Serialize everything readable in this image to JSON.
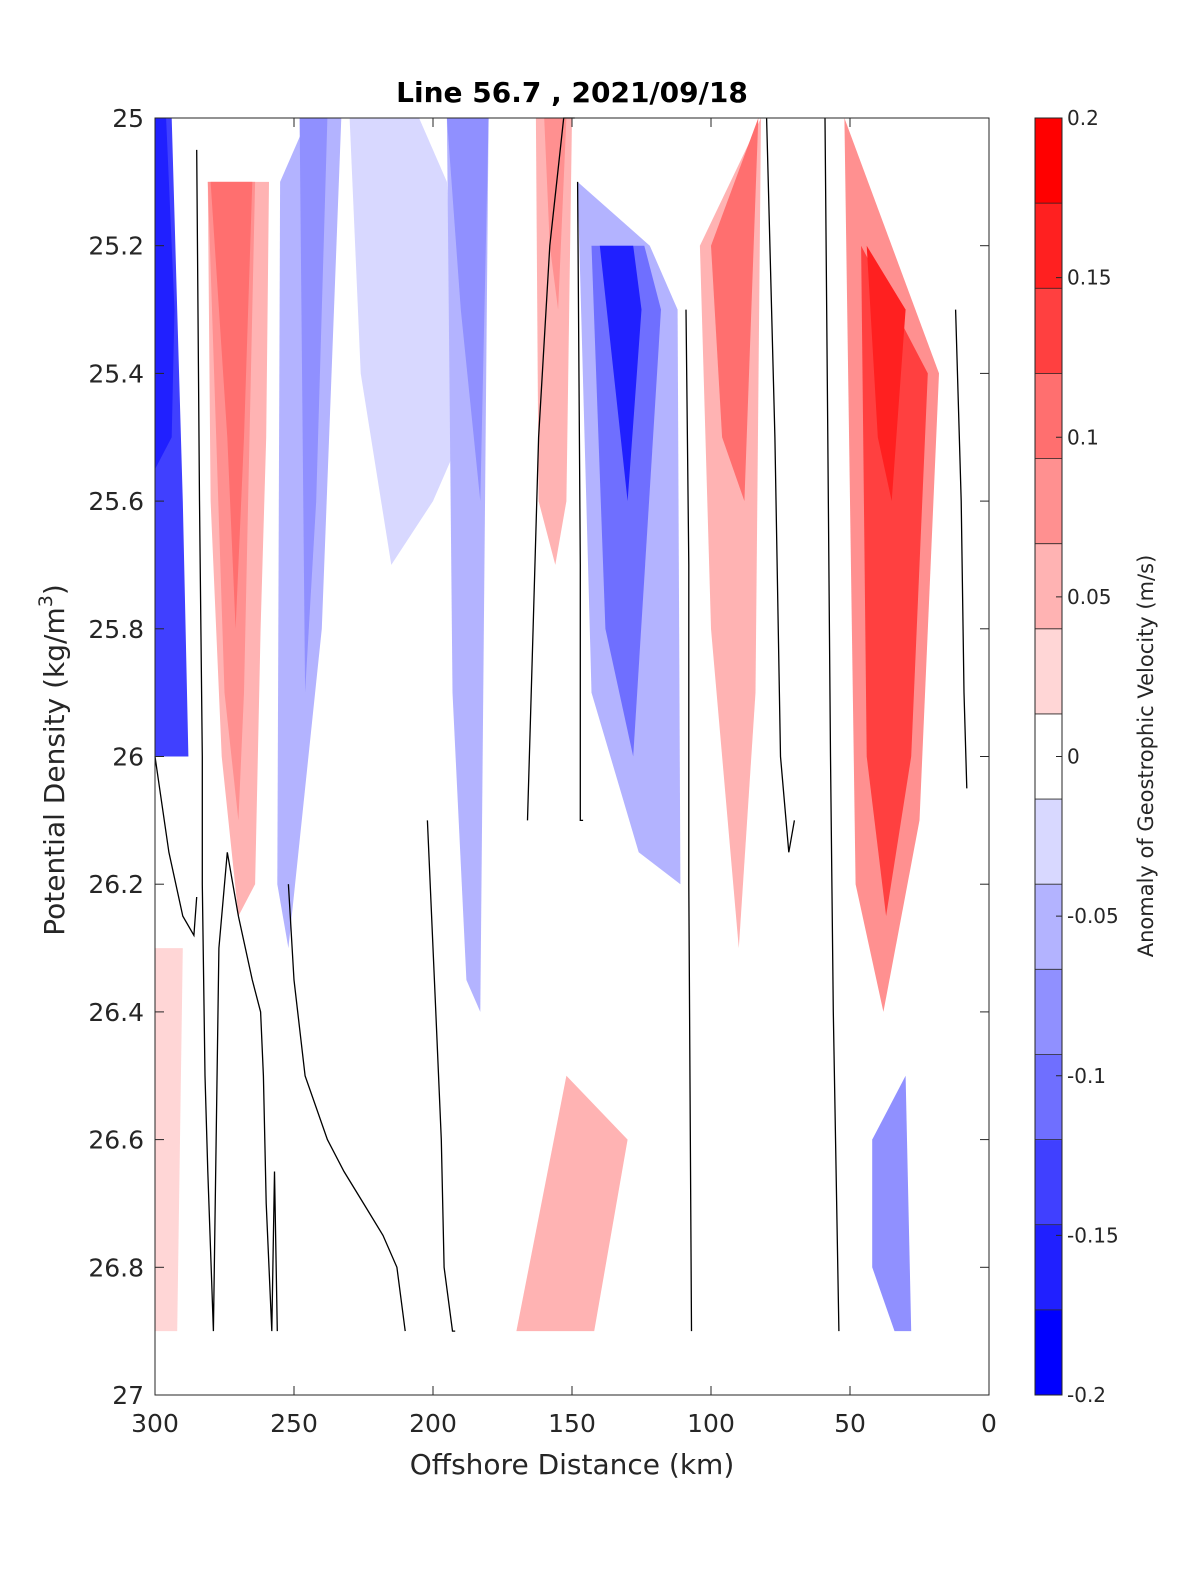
{
  "chart_data": {
    "type": "contour",
    "title": "Line 56.7 , 2021/09/18",
    "xlabel": "Offshore Distance (km)",
    "ylabel_main": "Potential Density (kg/m",
    "ylabel_sup": "3",
    "ylabel_close": ")",
    "xlim": [
      300,
      0
    ],
    "ylim": [
      27,
      25
    ],
    "x_ticks": [
      "300",
      "250",
      "200",
      "150",
      "100",
      "50",
      "0"
    ],
    "y_ticks": [
      "25",
      "25.2",
      "25.4",
      "25.6",
      "25.8",
      "26",
      "26.2",
      "26.4",
      "26.6",
      "26.8",
      "27"
    ],
    "colorbar": {
      "label": "Anomaly of Geostrophic Velocity (m/s)",
      "range": [
        -0.2,
        0.2
      ],
      "ticks": [
        "0.2",
        "0.15",
        "0.1",
        "0.05",
        "0",
        "-0.05",
        "-0.1",
        "-0.15",
        "-0.2"
      ],
      "colors": [
        "#0000ff",
        "#2020ff",
        "#4040ff",
        "#6f6fff",
        "#9090ff",
        "#b3b3ff",
        "#d8d8ff",
        "#ffffff",
        "#ffd6d6",
        "#ffb3b3",
        "#ff9090",
        "#ff6f6f",
        "#ff4040",
        "#ff2020",
        "#ff0000"
      ]
    },
    "zero_contour_color": "#000000",
    "regions": [
      {
        "x": [
          300,
          294,
          292,
          290,
          288,
          300
        ],
        "y": [
          25.0,
          25.0,
          25.3,
          25.6,
          26.0,
          26.0
        ],
        "value": -0.13
      },
      {
        "x": [
          300,
          296,
          293,
          294,
          300
        ],
        "y": [
          25.0,
          25.0,
          25.3,
          25.5,
          25.55
        ],
        "value": -0.16
      },
      {
        "x": [
          286,
          281,
          280,
          276,
          270,
          264,
          262,
          260,
          259,
          283,
          286
        ],
        "y": [
          25.1,
          25.1,
          25.6,
          26.0,
          26.25,
          26.2,
          25.8,
          25.5,
          25.1,
          25.1,
          25.1
        ],
        "value": 0.05
      },
      {
        "x": [
          281,
          264,
          266,
          268,
          270,
          275,
          278
        ],
        "y": [
          25.1,
          25.1,
          25.5,
          25.9,
          26.1,
          25.9,
          25.5
        ],
        "value": 0.08
      },
      {
        "x": [
          280,
          265,
          268,
          271,
          274
        ],
        "y": [
          25.1,
          25.1,
          25.5,
          25.8,
          25.5
        ],
        "value": 0.1
      },
      {
        "x": [
          255,
          245,
          233,
          240,
          252,
          256
        ],
        "y": [
          25.1,
          25.0,
          25.0,
          25.8,
          26.3,
          26.2
        ],
        "value": -0.05
      },
      {
        "x": [
          248,
          238,
          242,
          246
        ],
        "y": [
          25.0,
          25.0,
          25.6,
          25.9
        ],
        "value": -0.07
      },
      {
        "x": [
          230,
          205,
          195,
          190,
          200,
          215,
          226
        ],
        "y": [
          25.0,
          25.0,
          25.1,
          25.5,
          25.6,
          25.7,
          25.4
        ],
        "value": -0.03
      },
      {
        "x": [
          195,
          180,
          183,
          188,
          193
        ],
        "y": [
          25.0,
          25.0,
          26.4,
          26.35,
          25.9
        ],
        "value": -0.04
      },
      {
        "x": [
          195,
          180,
          183,
          190
        ],
        "y": [
          25.0,
          25.0,
          25.6,
          25.3
        ],
        "value": -0.07
      },
      {
        "x": [
          163,
          150,
          152,
          156,
          162
        ],
        "y": [
          25.0,
          25.0,
          25.6,
          25.7,
          25.6
        ],
        "value": 0.04
      },
      {
        "x": [
          160,
          152,
          155,
          158
        ],
        "y": [
          25.0,
          25.0,
          25.3,
          25.2
        ],
        "value": 0.07
      },
      {
        "x": [
          148,
          122,
          112,
          111,
          126,
          143
        ],
        "y": [
          25.1,
          25.2,
          25.3,
          26.2,
          26.15,
          25.9
        ],
        "value": -0.05
      },
      {
        "x": [
          143,
          124,
          118,
          128,
          138
        ],
        "y": [
          25.2,
          25.2,
          25.3,
          26.0,
          25.8
        ],
        "value": -0.1
      },
      {
        "x": [
          140,
          128,
          125,
          130,
          135
        ],
        "y": [
          25.2,
          25.2,
          25.3,
          25.6,
          25.4
        ],
        "value": -0.15
      },
      {
        "x": [
          104,
          82,
          84,
          90,
          100
        ],
        "y": [
          25.2,
          25.0,
          25.9,
          26.3,
          25.8
        ],
        "value": 0.05
      },
      {
        "x": [
          100,
          83,
          88,
          96
        ],
        "y": [
          25.2,
          25.0,
          25.6,
          25.5
        ],
        "value": 0.1
      },
      {
        "x": [
          52,
          18,
          25,
          38,
          48
        ],
        "y": [
          25.0,
          25.4,
          26.1,
          26.4,
          26.2
        ],
        "value": 0.08
      },
      {
        "x": [
          46,
          22,
          28,
          37,
          44
        ],
        "y": [
          25.2,
          25.4,
          26.0,
          26.25,
          26.0
        ],
        "value": 0.14
      },
      {
        "x": [
          44,
          30,
          35,
          40
        ],
        "y": [
          25.2,
          25.3,
          25.6,
          25.5
        ],
        "value": 0.16
      },
      {
        "x": [
          42,
          30,
          28,
          34,
          42
        ],
        "y": [
          26.6,
          26.5,
          26.9,
          26.9,
          26.8
        ],
        "value": -0.08
      },
      {
        "x": [
          170,
          158,
          142,
          130,
          152
        ],
        "y": [
          26.9,
          26.9,
          26.9,
          26.6,
          26.5
        ],
        "value": 0.04
      },
      {
        "x": [
          290,
          300,
          300,
          292
        ],
        "y": [
          26.3,
          26.3,
          26.9,
          26.9
        ],
        "value": 0.03
      }
    ],
    "zero_contours": [
      {
        "x": [
          300,
          295,
          290,
          286,
          285
        ],
        "y": [
          26.0,
          26.15,
          26.25,
          26.28,
          26.22
        ]
      },
      {
        "x": [
          285,
          284,
          283,
          283,
          282,
          281,
          279,
          277,
          274,
          270,
          265,
          262,
          261,
          260,
          259,
          258,
          257,
          256
        ],
        "y": [
          25.05,
          25.6,
          26.0,
          26.2,
          26.5,
          26.65,
          26.9,
          26.3,
          26.15,
          26.25,
          26.35,
          26.4,
          26.5,
          26.7,
          26.8,
          26.9,
          26.65,
          26.9
        ]
      },
      {
        "x": [
          252,
          250,
          246,
          238,
          232,
          225,
          218,
          213,
          210
        ],
        "y": [
          26.2,
          26.35,
          26.5,
          26.6,
          26.65,
          26.7,
          26.75,
          26.8,
          26.9
        ]
      },
      {
        "x": [
          202,
          199,
          197,
          196,
          193,
          192
        ],
        "y": [
          26.1,
          26.4,
          26.6,
          26.8,
          26.9,
          26.9
        ]
      },
      {
        "x": [
          166,
          164,
          162,
          158,
          153,
          149
        ],
        "y": [
          26.1,
          25.8,
          25.5,
          25.2,
          25.0,
          25.0
        ]
      },
      {
        "x": [
          148,
          147,
          147,
          146
        ],
        "y": [
          25.1,
          25.7,
          26.1,
          26.1
        ]
      },
      {
        "x": [
          109,
          108,
          108,
          107
        ],
        "y": [
          25.3,
          25.7,
          26.2,
          26.9
        ]
      },
      {
        "x": [
          80,
          77,
          75,
          72,
          70
        ],
        "y": [
          25.0,
          25.5,
          26.0,
          26.15,
          26.1
        ]
      },
      {
        "x": [
          59,
          58,
          57,
          56,
          54
        ],
        "y": [
          25.0,
          25.5,
          26.0,
          26.4,
          26.9
        ]
      },
      {
        "x": [
          12,
          10,
          9,
          8
        ],
        "y": [
          25.3,
          25.6,
          25.9,
          26.05
        ]
      }
    ]
  }
}
